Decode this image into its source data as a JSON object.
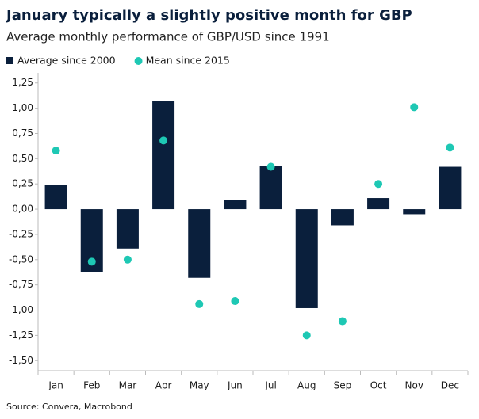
{
  "chart_data": {
    "type": "bar",
    "title": "January typically a slightly positive month for GBP",
    "subtitle": "Average monthly performance of GBP/USD since 1991",
    "source": "Source: Convera, Macrobond",
    "categories": [
      "Jan",
      "Feb",
      "Mar",
      "Apr",
      "May",
      "Jun",
      "Jul",
      "Aug",
      "Sep",
      "Oct",
      "Nov",
      "Dec"
    ],
    "series": [
      {
        "name": "Average since 2000",
        "type": "bar",
        "color": "#0a1f3c",
        "values": [
          0.24,
          -0.62,
          -0.39,
          1.07,
          -0.68,
          0.09,
          0.43,
          -0.98,
          -0.16,
          0.11,
          -0.05,
          0.42
        ]
      },
      {
        "name": "Mean since 2015",
        "type": "scatter",
        "color": "#1ec8b4",
        "values": [
          0.58,
          -0.52,
          -0.5,
          0.68,
          -0.94,
          -0.91,
          0.42,
          -1.25,
          -1.11,
          0.25,
          1.01,
          0.61
        ]
      }
    ],
    "ylim": [
      -1.6,
      1.35
    ],
    "yticks": [
      {
        "value": 1.25,
        "label": "1,25"
      },
      {
        "value": 1.0,
        "label": "1,00"
      },
      {
        "value": 0.75,
        "label": "0,75"
      },
      {
        "value": 0.5,
        "label": "0,50"
      },
      {
        "value": 0.25,
        "label": "0,25"
      },
      {
        "value": 0,
        "label": "0,00"
      },
      {
        "value": -0.25,
        "label": "-0,25"
      },
      {
        "value": -0.5,
        "label": "-0,50"
      },
      {
        "value": -0.75,
        "label": "-0,75"
      },
      {
        "value": -1.0,
        "label": "-1,00"
      },
      {
        "value": -1.25,
        "label": "-1,25"
      },
      {
        "value": -1.5,
        "label": "-1,50"
      }
    ]
  }
}
